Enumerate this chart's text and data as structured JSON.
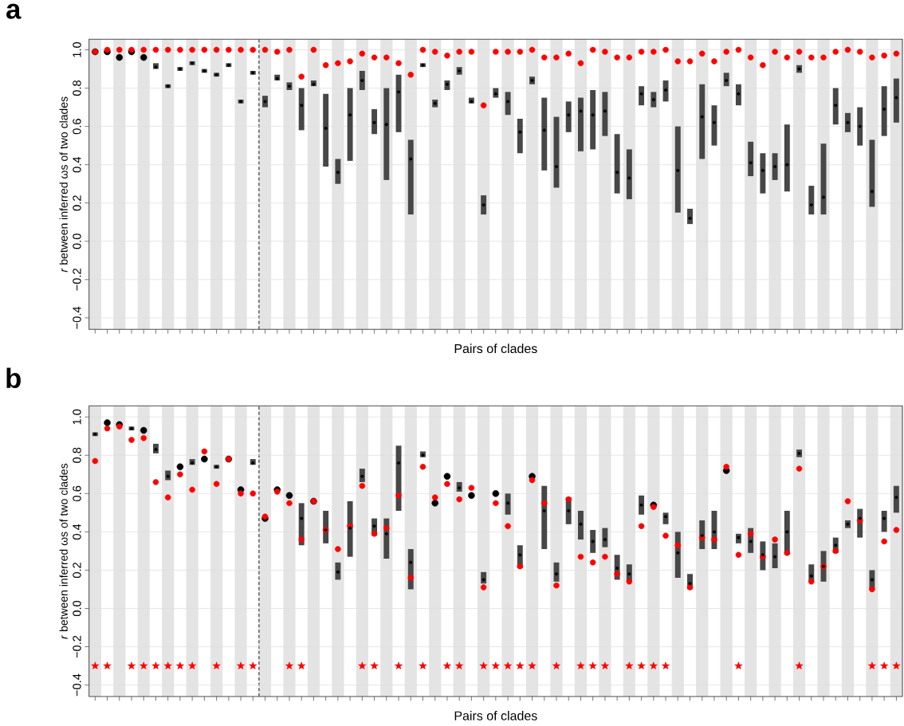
{
  "chart_data": [
    {
      "type": "scatter",
      "title": "a",
      "xlabel": "Pairs of clades",
      "ylabel": "*r* between inferred ωs of two clades",
      "categories": [
        null,
        null,
        null,
        null,
        null,
        null,
        null,
        null,
        null,
        null,
        null,
        null,
        null,
        null,
        null,
        null,
        null,
        null,
        null,
        null,
        null,
        null,
        null,
        null,
        null,
        null,
        null,
        null,
        null,
        null,
        null,
        null,
        null,
        null,
        null,
        null,
        null,
        null,
        null,
        null,
        null,
        null,
        null,
        null,
        null,
        null,
        null,
        null,
        null,
        null,
        null,
        null,
        null,
        null,
        null,
        null,
        null,
        null,
        null,
        null,
        null,
        null,
        null,
        null,
        null,
        null,
        null
      ],
      "ylim": [
        -0.46,
        1.055
      ],
      "yticks": [
        {
          "value": -0.4,
          "label": "−0.4"
        },
        {
          "value": -0.2,
          "label": "−0.2"
        },
        {
          "value": 0,
          "label": "0.0"
        },
        {
          "value": 0.2,
          "label": "0.2"
        },
        {
          "value": 0.4,
          "label": "0.4"
        },
        {
          "value": 0.6,
          "label": "0.6"
        },
        {
          "value": 0.8,
          "label": "0.8"
        },
        {
          "value": 1,
          "label": "1.0"
        }
      ],
      "grid": "y",
      "series": [
        {
          "color": "#000000",
          "marker": "circle",
          "values": [
            0.99,
            0.99,
            0.96,
            0.99,
            0.96,
            0.91,
            0.81,
            0.9,
            0.93,
            0.89,
            0.87,
            0.92,
            0.73,
            0.88,
            0.73,
            0.85,
            0.81,
            0.71,
            0.82,
            0.59,
            0.36,
            0.66,
            0.84,
            0.62,
            0.61,
            0.78,
            0.43,
            0.92,
            0.72,
            0.82,
            0.89,
            0.73,
            0.19,
            0.77,
            0.73,
            0.57,
            0.84,
            0.58,
            0.39,
            0.66,
            0.68,
            0.66,
            0.68,
            0.36,
            0.33,
            0.77,
            0.74,
            0.79,
            0.37,
            0.12,
            0.65,
            0.62,
            0.84,
            0.77,
            0.41,
            0.37,
            0.39,
            0.4,
            0.9,
            0.19,
            0.23,
            0.71,
            0.62,
            0.6,
            0.26,
            0.69,
            0.75
          ],
          "errors": [
            null,
            null,
            null,
            null,
            null,
            [
              0.9,
              0.93
            ],
            [
              0.8,
              0.82
            ],
            [
              0.89,
              0.91
            ],
            [
              0.92,
              0.94
            ],
            [
              0.88,
              0.9
            ],
            [
              0.86,
              0.88
            ],
            [
              0.91,
              0.93
            ],
            [
              0.72,
              0.74
            ],
            [
              0.87,
              0.89
            ],
            [
              0.7,
              0.76
            ],
            [
              0.84,
              0.87
            ],
            [
              0.79,
              0.83
            ],
            [
              0.58,
              0.8
            ],
            [
              0.81,
              0.84
            ],
            [
              0.39,
              0.77
            ],
            [
              0.3,
              0.43
            ],
            [
              0.42,
              0.8
            ],
            [
              0.79,
              0.89
            ],
            [
              0.56,
              0.69
            ],
            [
              0.32,
              0.8
            ],
            [
              0.57,
              0.87
            ],
            [
              0.14,
              0.53
            ],
            [
              0.91,
              0.93
            ],
            [
              0.7,
              0.74
            ],
            [
              0.79,
              0.84
            ],
            [
              0.87,
              0.91
            ],
            [
              0.72,
              0.75
            ],
            [
              0.14,
              0.24
            ],
            [
              0.75,
              0.8
            ],
            [
              0.66,
              0.78
            ],
            [
              0.46,
              0.64
            ],
            [
              0.82,
              0.86
            ],
            [
              0.37,
              0.75
            ],
            [
              0.28,
              0.65
            ],
            [
              0.57,
              0.73
            ],
            [
              0.47,
              0.75
            ],
            [
              0.48,
              0.79
            ],
            [
              0.55,
              0.78
            ],
            [
              0.25,
              0.56
            ],
            [
              0.22,
              0.48
            ],
            [
              0.71,
              0.81
            ],
            [
              0.7,
              0.78
            ],
            [
              0.73,
              0.84
            ],
            [
              0.15,
              0.6
            ],
            [
              0.09,
              0.17
            ],
            [
              0.43,
              0.82
            ],
            [
              0.5,
              0.71
            ],
            [
              0.81,
              0.88
            ],
            [
              0.71,
              0.82
            ],
            [
              0.34,
              0.52
            ],
            [
              0.25,
              0.46
            ],
            [
              0.32,
              0.46
            ],
            [
              0.26,
              0.61
            ],
            [
              0.88,
              0.92
            ],
            [
              0.14,
              0.29
            ],
            [
              0.14,
              0.51
            ],
            [
              0.61,
              0.8
            ],
            [
              0.57,
              0.67
            ],
            [
              0.5,
              0.7
            ],
            [
              0.18,
              0.53
            ],
            [
              0.55,
              0.81
            ],
            [
              0.62,
              0.85
            ]
          ]
        },
        {
          "color": "#ff0000",
          "marker": "circle",
          "values": [
            0.99,
            1,
            1,
            1,
            1,
            1,
            1,
            1,
            1,
            1,
            1,
            1,
            1,
            1,
            1,
            0.99,
            1,
            0.86,
            1,
            0.92,
            0.93,
            0.94,
            0.98,
            0.96,
            0.96,
            0.93,
            0.87,
            1,
            0.99,
            0.97,
            0.99,
            0.99,
            0.71,
            0.99,
            0.99,
            0.99,
            1,
            0.96,
            0.96,
            0.98,
            0.93,
            1,
            0.99,
            0.96,
            0.96,
            0.99,
            0.99,
            1,
            0.94,
            0.94,
            0.98,
            0.94,
            0.99,
            1,
            0.96,
            0.92,
            0.99,
            0.96,
            0.99,
            0.96,
            0.96,
            0.99,
            1,
            0.99,
            0.96,
            0.97,
            0.98
          ]
        }
      ]
    },
    {
      "type": "scatter",
      "title": "b",
      "xlabel": "Pairs of clades",
      "ylabel": "*r* between inferred ωs of two clades",
      "categories": [
        null,
        null,
        null,
        null,
        null,
        null,
        null,
        null,
        null,
        null,
        null,
        null,
        null,
        null,
        null,
        null,
        null,
        null,
        null,
        null,
        null,
        null,
        null,
        null,
        null,
        null,
        null,
        null,
        null,
        null,
        null,
        null,
        null,
        null,
        null,
        null,
        null,
        null,
        null,
        null,
        null,
        null,
        null,
        null,
        null,
        null,
        null,
        null,
        null,
        null,
        null,
        null,
        null,
        null,
        null,
        null,
        null,
        null,
        null,
        null,
        null,
        null,
        null,
        null,
        null,
        null,
        null
      ],
      "ylim": [
        -0.46,
        1.058
      ],
      "yticks": [
        {
          "value": -0.4,
          "label": "−0.4"
        },
        {
          "value": -0.2,
          "label": "−0.2"
        },
        {
          "value": 0,
          "label": "0.0"
        },
        {
          "value": 0.2,
          "label": "0.2"
        },
        {
          "value": 0.4,
          "label": "0.4"
        },
        {
          "value": 0.6,
          "label": "0.6"
        },
        {
          "value": 0.8,
          "label": "0.8"
        },
        {
          "value": 1,
          "label": "1.0"
        }
      ],
      "grid": "y",
      "series": [
        {
          "color": "#000000",
          "marker": "circle",
          "values": [
            0.91,
            0.97,
            0.96,
            0.94,
            0.93,
            0.83,
            0.69,
            0.74,
            0.76,
            0.78,
            0.74,
            0.78,
            0.62,
            0.76,
            0.47,
            0.62,
            0.59,
            0.47,
            0.56,
            0.41,
            0.19,
            0.42,
            0.69,
            0.43,
            0.39,
            0.76,
            0.24,
            0.8,
            0.55,
            0.69,
            0.63,
            0.59,
            0.15,
            0.6,
            0.55,
            0.28,
            0.69,
            0.51,
            0.18,
            0.51,
            0.44,
            0.35,
            0.36,
            0.21,
            0.18,
            0.54,
            0.54,
            0.48,
            0.29,
            0.13,
            0.38,
            0.4,
            0.72,
            0.37,
            0.35,
            0.28,
            0.27,
            0.4,
            0.81,
            0.17,
            0.22,
            0.33,
            0.44,
            0.47,
            0.15,
            0.47,
            0.58
          ],
          "errors": [
            [
              0.9,
              0.92
            ],
            null,
            null,
            [
              0.93,
              0.95
            ],
            null,
            [
              0.81,
              0.86
            ],
            [
              0.67,
              0.72
            ],
            null,
            [
              0.75,
              0.78
            ],
            null,
            [
              0.73,
              0.75
            ],
            null,
            null,
            [
              0.75,
              0.78
            ],
            null,
            null,
            null,
            [
              0.33,
              0.55
            ],
            null,
            [
              0.34,
              0.51
            ],
            [
              0.15,
              0.24
            ],
            [
              0.27,
              0.56
            ],
            [
              0.66,
              0.73
            ],
            [
              0.38,
              0.47
            ],
            [
              0.26,
              0.47
            ],
            [
              0.51,
              0.85
            ],
            [
              0.1,
              0.31
            ],
            [
              0.79,
              0.82
            ],
            null,
            null,
            [
              0.61,
              0.66
            ],
            null,
            [
              0.13,
              0.19
            ],
            null,
            [
              0.49,
              0.6
            ],
            [
              0.21,
              0.33
            ],
            null,
            [
              0.31,
              0.64
            ],
            [
              0.14,
              0.24
            ],
            [
              0.44,
              0.58
            ],
            [
              0.36,
              0.51
            ],
            [
              0.29,
              0.41
            ],
            [
              0.32,
              0.42
            ],
            [
              0.15,
              0.28
            ],
            [
              0.14,
              0.23
            ],
            [
              0.49,
              0.59
            ],
            null,
            [
              0.44,
              0.5
            ],
            [
              0.16,
              0.4
            ],
            [
              0.1,
              0.18
            ],
            [
              0.31,
              0.46
            ],
            [
              0.31,
              0.51
            ],
            null,
            [
              0.34,
              0.39
            ],
            [
              0.29,
              0.42
            ],
            [
              0.2,
              0.35
            ],
            [
              0.21,
              0.34
            ],
            [
              0.28,
              0.51
            ],
            [
              0.79,
              0.83
            ],
            [
              0.14,
              0.23
            ],
            [
              0.14,
              0.3
            ],
            [
              0.29,
              0.37
            ],
            [
              0.42,
              0.46
            ],
            [
              0.37,
              0.52
            ],
            [
              0.1,
              0.2
            ],
            [
              0.4,
              0.51
            ],
            [
              0.5,
              0.64
            ]
          ]
        },
        {
          "color": "#ff0000",
          "marker": "circle",
          "values": [
            0.77,
            0.94,
            0.95,
            0.88,
            0.89,
            0.66,
            0.58,
            0.7,
            0.62,
            0.82,
            0.65,
            0.78,
            0.6,
            0.6,
            0.48,
            0.61,
            0.55,
            0.36,
            0.56,
            0.41,
            0.31,
            0.43,
            0.64,
            0.39,
            0.42,
            0.59,
            0.16,
            0.74,
            0.58,
            0.65,
            0.57,
            0.63,
            0.11,
            0.55,
            0.43,
            0.22,
            0.67,
            0.55,
            0.12,
            0.57,
            0.27,
            0.24,
            0.27,
            0.18,
            0.14,
            0.43,
            0.53,
            0.38,
            0.33,
            0.11,
            0.37,
            0.36,
            0.74,
            0.28,
            0.39,
            0.27,
            0.36,
            0.29,
            0.73,
            0.14,
            0.22,
            0.3,
            0.56,
            0.46,
            0.1,
            0.35,
            0.41
          ]
        },
        {
          "color": "#ff0000",
          "marker": "star",
          "values": [
            -0.3,
            -0.3,
            null,
            -0.3,
            -0.3,
            -0.3,
            -0.3,
            -0.3,
            -0.3,
            null,
            -0.3,
            null,
            -0.3,
            -0.3,
            null,
            null,
            -0.3,
            -0.3,
            null,
            null,
            null,
            null,
            -0.3,
            -0.3,
            null,
            -0.3,
            null,
            -0.3,
            null,
            -0.3,
            -0.3,
            null,
            -0.3,
            -0.3,
            -0.3,
            -0.3,
            -0.3,
            null,
            -0.3,
            null,
            -0.3,
            -0.3,
            -0.3,
            null,
            -0.3,
            -0.3,
            -0.3,
            -0.3,
            null,
            null,
            null,
            null,
            null,
            -0.3,
            null,
            null,
            null,
            null,
            -0.3,
            null,
            null,
            null,
            null,
            null,
            -0.3,
            -0.3,
            -0.3
          ]
        }
      ]
    }
  ]
}
